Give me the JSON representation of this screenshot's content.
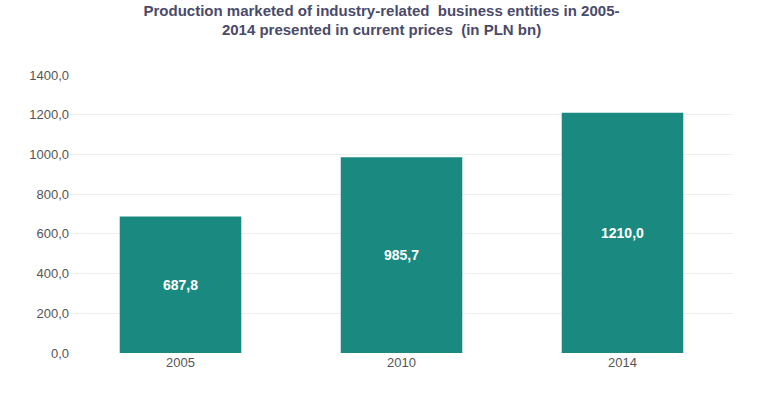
{
  "chart_data": {
    "type": "bar",
    "title": "Production marketed of industry-related  business entities in 2005-\n2014 presented in current prices  (in PLN bn)",
    "categories": [
      "2005",
      "2010",
      "2014"
    ],
    "values": [
      687.8,
      985.7,
      1210.0
    ],
    "value_labels": [
      "687,8",
      "985,7",
      "1210,0"
    ],
    "data_labels": true,
    "color": "#1a8a80",
    "ylim": [
      0,
      1400
    ],
    "yticks": [
      {
        "value": 0,
        "label": "0,0"
      },
      {
        "value": 200,
        "label": "200,0"
      },
      {
        "value": 400,
        "label": "400,0"
      },
      {
        "value": 600,
        "label": "600,0"
      },
      {
        "value": 800,
        "label": "800,0"
      },
      {
        "value": 1000,
        "label": "1000,0"
      },
      {
        "value": 1200,
        "label": "1200,0"
      },
      {
        "value": 1400,
        "label": "1400,0"
      }
    ],
    "grid": true
  }
}
